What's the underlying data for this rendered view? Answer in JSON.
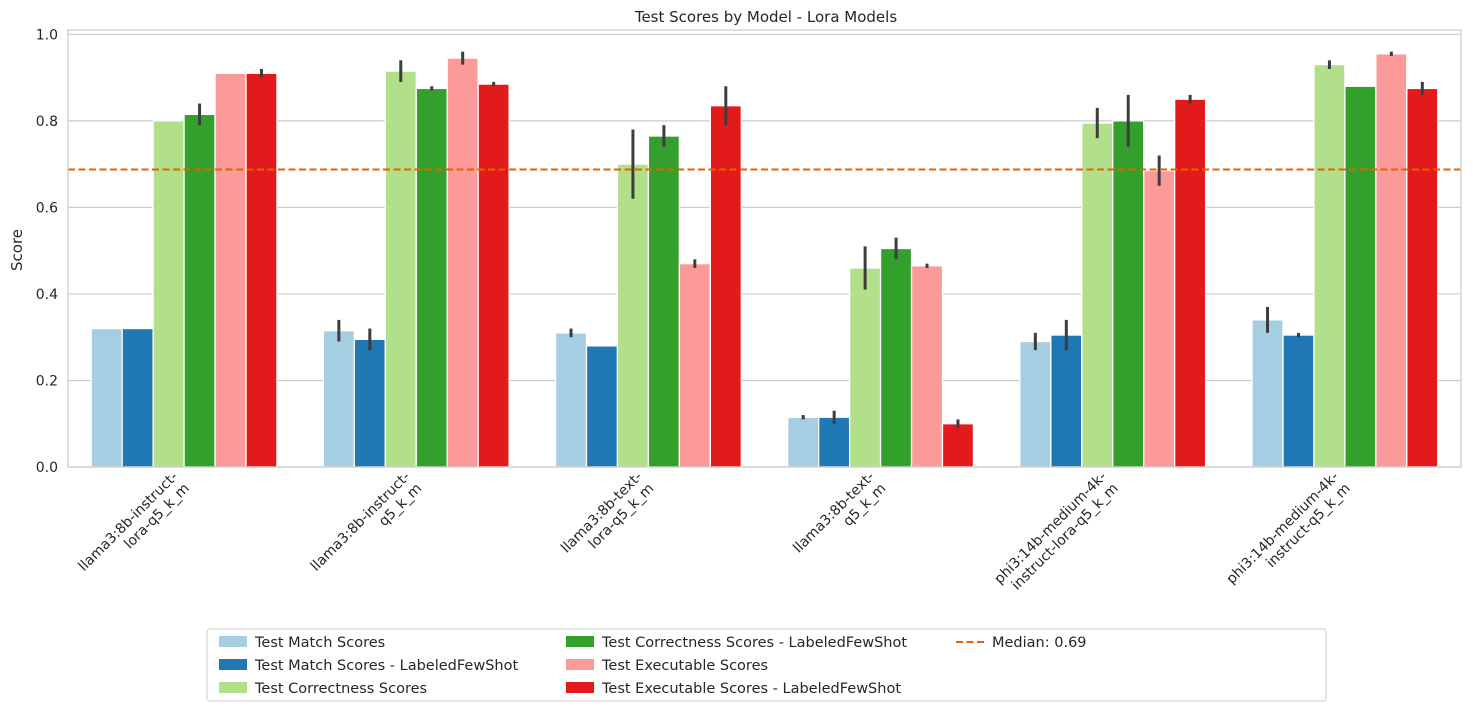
{
  "chart_data": {
    "type": "bar",
    "title": "Test Scores by Model - Lora Models",
    "xlabel": "",
    "ylabel": "Score",
    "ylim": [
      0,
      1.01
    ],
    "yticks": [
      "0.0",
      "0.2",
      "0.4",
      "0.6",
      "0.8",
      "1.0"
    ],
    "grid": true,
    "legend_position": "bottom-center",
    "categories": [
      "llama3:8b-instruct-\nlora-q5_k_m",
      "llama3:8b-instruct-\nq5_k_m",
      "llama3:8b-text-\nlora-q5_k_m",
      "llama3:8b-text-\nq5_k_m",
      "phi3:14b-medium-4k-\ninstruct-lora-q5_k_m",
      "phi3:14b-medium-4k-\ninstruct-q5_k_m"
    ],
    "series": [
      {
        "name": "Test Match Scores",
        "color": "#a6cee3",
        "values": [
          0.32,
          0.315,
          0.31,
          0.115,
          0.29,
          0.34
        ],
        "error_low": [
          null,
          0.29,
          0.3,
          0.11,
          0.27,
          0.31
        ],
        "error_high": [
          null,
          0.34,
          0.32,
          0.12,
          0.31,
          0.37
        ]
      },
      {
        "name": "Test Match Scores - LabeledFewShot",
        "color": "#1f78b4",
        "values": [
          0.32,
          0.295,
          0.28,
          0.115,
          0.305,
          0.305
        ],
        "error_low": [
          null,
          0.27,
          null,
          0.1,
          0.27,
          0.3
        ],
        "error_high": [
          null,
          0.32,
          null,
          0.13,
          0.34,
          0.31
        ]
      },
      {
        "name": "Test Correctness Scores",
        "color": "#b2df8a",
        "values": [
          0.8,
          0.915,
          0.7,
          0.46,
          0.795,
          0.93
        ],
        "error_low": [
          null,
          0.89,
          0.62,
          0.41,
          0.76,
          0.92
        ],
        "error_high": [
          null,
          0.94,
          0.78,
          0.51,
          0.83,
          0.94
        ]
      },
      {
        "name": "Test Correctness Scores - LabeledFewShot",
        "color": "#33a02c",
        "values": [
          0.815,
          0.875,
          0.765,
          0.505,
          0.8,
          0.88
        ],
        "error_low": [
          0.79,
          0.87,
          0.74,
          0.48,
          0.74,
          null
        ],
        "error_high": [
          0.84,
          0.88,
          0.79,
          0.53,
          0.86,
          null
        ]
      },
      {
        "name": "Test Executable Scores",
        "color": "#fb9a99",
        "values": [
          0.91,
          0.945,
          0.47,
          0.465,
          0.685,
          0.955
        ],
        "error_low": [
          null,
          0.93,
          0.46,
          0.46,
          0.65,
          0.95
        ],
        "error_high": [
          null,
          0.96,
          0.48,
          0.47,
          0.72,
          0.96
        ]
      },
      {
        "name": "Test Executable Scores - LabeledFewShot",
        "color": "#e31a1c",
        "values": [
          0.91,
          0.885,
          0.835,
          0.1,
          0.85,
          0.875
        ],
        "error_low": [
          0.9,
          0.88,
          0.79,
          0.09,
          0.84,
          0.86
        ],
        "error_high": [
          0.92,
          0.89,
          0.88,
          0.11,
          0.86,
          0.89
        ]
      }
    ],
    "reference_line": {
      "name": "Median: 0.69",
      "value": 0.6875,
      "color": "#e66100",
      "style": "dashed"
    }
  }
}
